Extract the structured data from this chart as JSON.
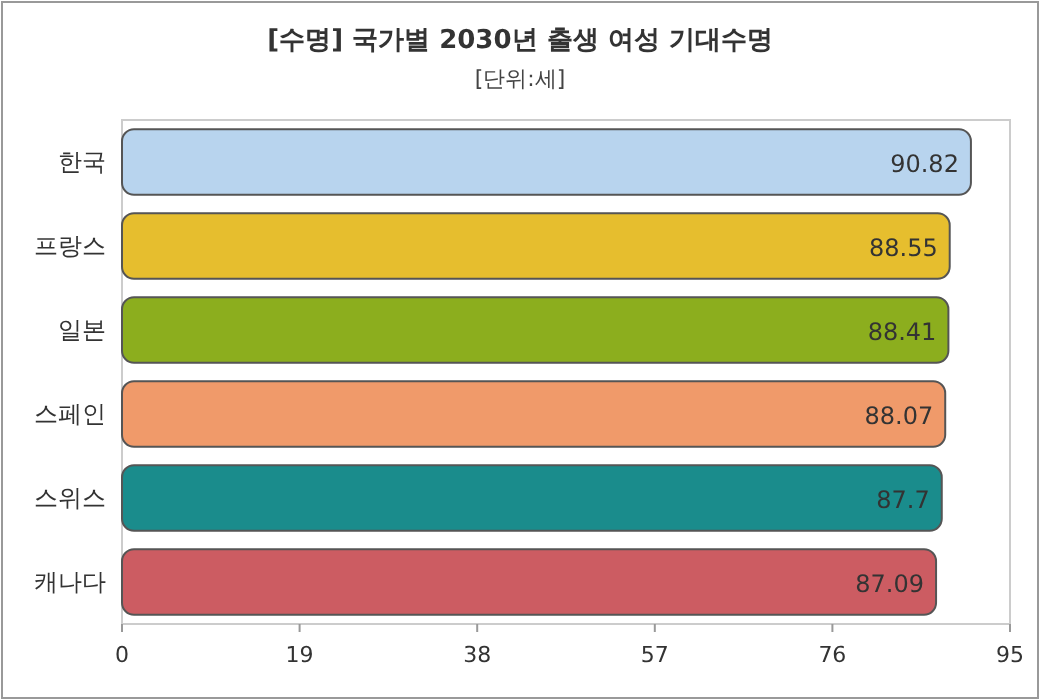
{
  "chart_data": {
    "type": "bar",
    "orientation": "horizontal",
    "title": "[수명] 국가별 2030년 출생 여성 기대수명",
    "subtitle": "[단위:세]",
    "categories": [
      "한국",
      "프랑스",
      "일본",
      "스페인",
      "스위스",
      "캐나다"
    ],
    "values": [
      90.82,
      88.55,
      88.41,
      88.07,
      87.7,
      87.09
    ],
    "colors": [
      "#b8d4ee",
      "#e6be2e",
      "#8cae1e",
      "#f09a6a",
      "#1a8c8c",
      "#cc5c62"
    ],
    "xlim": [
      0,
      95
    ],
    "xticks": [
      0,
      19,
      38,
      57,
      76,
      95
    ],
    "data_labels": true
  }
}
